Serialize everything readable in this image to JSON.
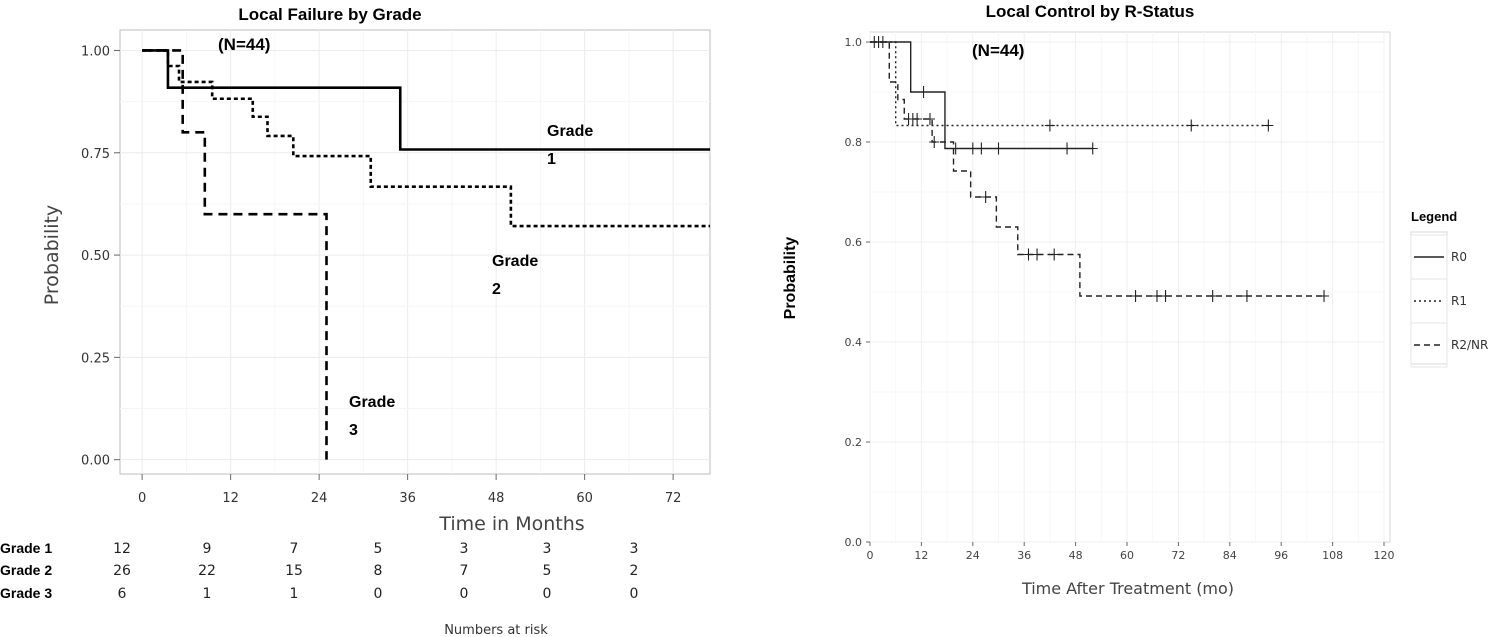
{
  "chart_data": [
    {
      "type": "line",
      "title": "Local Failure by Grade",
      "subtitle": "(N=44)",
      "xlabel": "Time in Months",
      "ylabel": "Probability",
      "xlim": [
        -3,
        77
      ],
      "ylim": [
        -0.035,
        1.05
      ],
      "x_ticks": [
        "0",
        "12",
        "24",
        "36",
        "48",
        "60",
        "72"
      ],
      "y_ticks": [
        "0.00",
        "0.25",
        "0.50",
        "0.75",
        "1.00"
      ],
      "grid": true,
      "series": [
        {
          "name": "Grade 1",
          "label_lines": [
            "Grade",
            "1"
          ],
          "dash": "solid",
          "x": [
            0,
            3.5,
            3.5,
            35,
            35,
            77
          ],
          "y": [
            1.0,
            1.0,
            0.909,
            0.909,
            0.758,
            0.758
          ]
        },
        {
          "name": "Grade 2",
          "label_lines": [
            "Grade",
            "2"
          ],
          "dash": "dotted",
          "x": [
            0,
            3.5,
            3.5,
            5,
            5,
            9.5,
            9.5,
            15,
            15,
            17,
            17,
            20.5,
            20.5,
            31,
            31,
            50,
            50,
            77
          ],
          "y": [
            1.0,
            1.0,
            0.962,
            0.962,
            0.923,
            0.923,
            0.882,
            0.882,
            0.838,
            0.838,
            0.791,
            0.791,
            0.742,
            0.742,
            0.667,
            0.667,
            0.571,
            0.571
          ]
        },
        {
          "name": "Grade 3",
          "label_lines": [
            "Grade",
            "3"
          ],
          "dash": "dashed",
          "x": [
            0,
            5.5,
            5.5,
            8.5,
            8.5,
            25,
            25
          ],
          "y": [
            1.0,
            1.0,
            0.8,
            0.8,
            0.6,
            0.6,
            0.0
          ]
        }
      ],
      "risk_table": {
        "title": "Numbers at risk",
        "rows": [
          {
            "name": "Grade 1",
            "values": [
              "12",
              "9",
              "7",
              "5",
              "3",
              "3",
              "3"
            ]
          },
          {
            "name": "Grade 2",
            "values": [
              "26",
              "22",
              "15",
              "8",
              "7",
              "5",
              "2"
            ]
          },
          {
            "name": "Grade 3",
            "values": [
              "6",
              "1",
              "1",
              "0",
              "0",
              "0",
              "0"
            ]
          }
        ]
      }
    },
    {
      "type": "line",
      "title": "Local Control by R-Status",
      "subtitle": "(N=44)",
      "xlabel": "Time After Treatment (mo)",
      "ylabel": "Probability",
      "xlim": [
        0,
        120
      ],
      "ylim": [
        0.0,
        1.02
      ],
      "x_ticks": [
        "0",
        "12",
        "24",
        "36",
        "48",
        "60",
        "72",
        "84",
        "96",
        "108",
        "120"
      ],
      "y_ticks": [
        "0.0",
        "0.2",
        "0.4",
        "0.6",
        "0.8",
        "1.0"
      ],
      "grid": true,
      "legend": {
        "title": "Legend",
        "position": "right"
      },
      "series": [
        {
          "name": "R0",
          "dash": "solid",
          "x": [
            0,
            9.5,
            9.5,
            17.5,
            17.5,
            52
          ],
          "y": [
            1.0,
            1.0,
            0.9,
            0.9,
            0.787,
            0.787
          ],
          "censor_x": [
            12.5,
            20,
            24,
            26,
            30,
            46,
            52
          ]
        },
        {
          "name": "R1",
          "dash": "dotted",
          "x": [
            0,
            6,
            6,
            93
          ],
          "y": [
            1.0,
            1.0,
            0.833,
            0.833
          ],
          "censor_x": [
            42,
            75,
            93
          ]
        },
        {
          "name": "R2/NR",
          "dash": "dashed",
          "x": [
            0,
            4.5,
            4.5,
            6.5,
            6.5,
            8,
            8,
            14.5,
            14.5,
            19.5,
            19.5,
            23.5,
            23.5,
            25.5,
            25.5,
            29.5,
            29.5,
            34.5,
            34.5,
            49,
            49,
            106
          ],
          "y": [
            1.0,
            1.0,
            0.92,
            0.92,
            0.885,
            0.885,
            0.846,
            0.846,
            0.8,
            0.8,
            0.742,
            0.742,
            0.69,
            0.69,
            0.69,
            0.69,
            0.63,
            0.63,
            0.575,
            0.575,
            0.492,
            0.492
          ],
          "censor_x": [
            1,
            2,
            3,
            9,
            10,
            11,
            14,
            15,
            27,
            37,
            39,
            43,
            62,
            67,
            69,
            80,
            88,
            106
          ]
        }
      ]
    }
  ]
}
